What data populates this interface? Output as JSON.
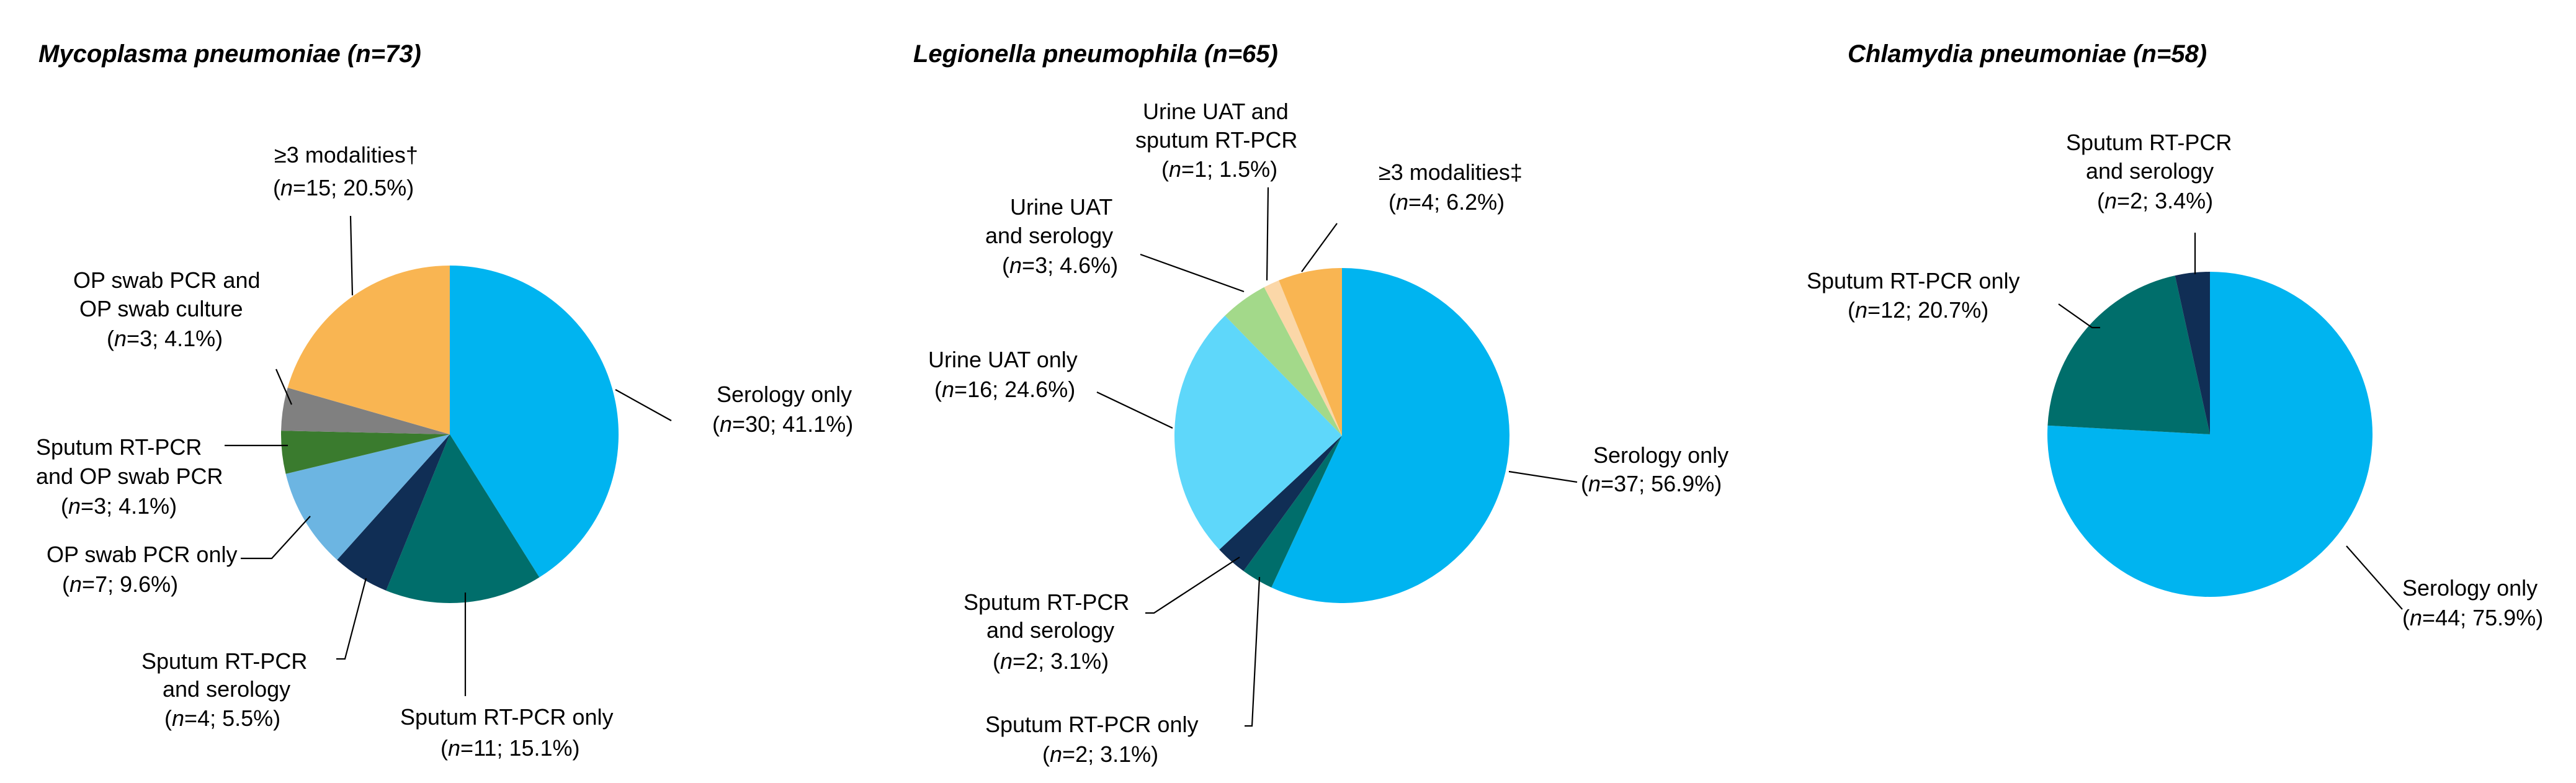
{
  "charts": [
    {
      "id": "mycoplasma",
      "title": {
        "species": "Mycoplasma pneumoniae",
        "n": "73"
      },
      "slices": [
        {
          "label": [
            "Serology only"
          ],
          "n": "30",
          "pct": "41.1%",
          "value": 30,
          "color": "#00B4F0"
        },
        {
          "label": [
            "Sputum RT-PCR only"
          ],
          "n": "11",
          "pct": "15.1%",
          "value": 11,
          "color": "#006E6B"
        },
        {
          "label": [
            "Sputum RT-PCR",
            "and serology"
          ],
          "n": "4",
          "pct": "5.5%",
          "value": 4,
          "color": "#102E55"
        },
        {
          "label": [
            "OP swab PCR only"
          ],
          "n": "7",
          "pct": "9.6%",
          "value": 7,
          "color": "#6CB5E2"
        },
        {
          "label": [
            "Sputum RT-PCR",
            "and OP swab PCR"
          ],
          "n": "3",
          "pct": "4.1%",
          "value": 3,
          "color": "#3A7B2E"
        },
        {
          "label": [
            "OP swab PCR and",
            "OP swab culture"
          ],
          "n": "3",
          "pct": "4.1%",
          "value": 3,
          "color": "#808080"
        },
        {
          "label": [
            "≥3 modalities†"
          ],
          "n": "15",
          "pct": "20.5%",
          "value": 15,
          "color": "#F9B552"
        }
      ]
    },
    {
      "id": "legionella",
      "title": {
        "species": "Legionella pneumophila",
        "n": "65"
      },
      "slices": [
        {
          "label": [
            "Serology only"
          ],
          "n": "37",
          "pct": "56.9%",
          "value": 37,
          "color": "#00B4F0"
        },
        {
          "label": [
            "Sputum RT-PCR only"
          ],
          "n": "2",
          "pct": "3.1%",
          "value": 2,
          "color": "#006E6B"
        },
        {
          "label": [
            "Sputum RT-PCR",
            "and serology"
          ],
          "n": "2",
          "pct": "3.1%",
          "value": 2,
          "color": "#102E55"
        },
        {
          "label": [
            "Urine UAT only"
          ],
          "n": "16",
          "pct": "24.6%",
          "value": 16,
          "color": "#5ED7FA"
        },
        {
          "label": [
            "Urine UAT",
            "and serology"
          ],
          "n": "3",
          "pct": "4.6%",
          "value": 3,
          "color": "#A3D98A"
        },
        {
          "label": [
            "Urine UAT and",
            "sputum RT-PCR"
          ],
          "n": "1",
          "pct": "1.5%",
          "value": 1,
          "color": "#FBD7A8"
        },
        {
          "label": [
            "≥3 modalities‡"
          ],
          "n": "4",
          "pct": "6.2%",
          "value": 4,
          "color": "#F9B552"
        }
      ]
    },
    {
      "id": "chlamydia",
      "title": {
        "species": "Chlamydia pneumoniae",
        "n": "58"
      },
      "slices": [
        {
          "label": [
            "Serology only"
          ],
          "n": "44",
          "pct": "75.9%",
          "value": 44,
          "color": "#00B4F0"
        },
        {
          "label": [
            "Sputum RT-PCR only"
          ],
          "n": "12",
          "pct": "20.7%",
          "value": 12,
          "color": "#006E6B"
        },
        {
          "label": [
            "Sputum RT-PCR",
            "and serology"
          ],
          "n": "2",
          "pct": "3.4%",
          "value": 2,
          "color": "#102E55"
        }
      ]
    }
  ],
  "chart_data": [
    {
      "type": "pie",
      "title": "Mycoplasma pneumoniae (n=73)",
      "categories": [
        "Serology only",
        "Sputum RT-PCR only",
        "Sputum RT-PCR and serology",
        "OP swab PCR only",
        "Sputum RT-PCR and OP swab PCR",
        "OP swab PCR and OP swab culture",
        "≥3 modalities†"
      ],
      "values": [
        30,
        11,
        4,
        7,
        3,
        3,
        15
      ],
      "percents": [
        41.1,
        15.1,
        5.5,
        9.6,
        4.1,
        4.1,
        20.5
      ]
    },
    {
      "type": "pie",
      "title": "Legionella pneumophila (n=65)",
      "categories": [
        "Serology only",
        "Sputum RT-PCR only",
        "Sputum RT-PCR and serology",
        "Urine UAT only",
        "Urine UAT and serology",
        "Urine UAT and sputum RT-PCR",
        "≥3 modalities‡"
      ],
      "values": [
        37,
        2,
        2,
        16,
        3,
        1,
        4
      ],
      "percents": [
        56.9,
        3.1,
        3.1,
        24.6,
        4.6,
        1.5,
        6.2
      ]
    },
    {
      "type": "pie",
      "title": "Chlamydia pneumoniae (n=58)",
      "categories": [
        "Serology only",
        "Sputum RT-PCR only",
        "Sputum RT-PCR and serology"
      ],
      "values": [
        44,
        12,
        2
      ],
      "percents": [
        75.9,
        20.7,
        3.4
      ]
    }
  ]
}
